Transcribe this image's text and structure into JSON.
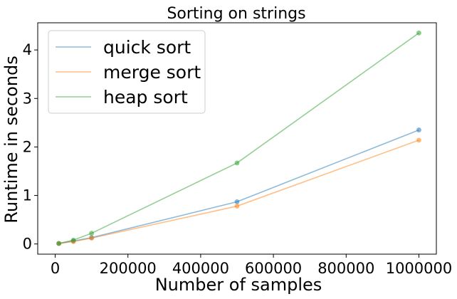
{
  "chart_data": {
    "type": "line",
    "title": "Sorting on strings",
    "xlabel": "Number of samples",
    "ylabel": "Runtime in seconds",
    "x": [
      10000,
      50000,
      100000,
      500000,
      1000000
    ],
    "series": [
      {
        "name": "quick sort",
        "color": "#1f77b4",
        "values": [
          0.01,
          0.06,
          0.13,
          0.87,
          2.35
        ]
      },
      {
        "name": "merge sort",
        "color": "#ff7f0e",
        "values": [
          0.01,
          0.05,
          0.12,
          0.78,
          2.14
        ]
      },
      {
        "name": "heap sort",
        "color": "#2ca02c",
        "values": [
          0.01,
          0.08,
          0.22,
          1.67,
          4.35
        ]
      }
    ],
    "xlim": [
      -48000,
      1048000
    ],
    "ylim": [
      -0.21,
      4.56
    ],
    "xticks": [
      0,
      200000,
      400000,
      600000,
      800000,
      1000000
    ],
    "xtick_labels": [
      "0",
      "200000",
      "400000",
      "600000",
      "800000",
      "1000000"
    ],
    "yticks": [
      0,
      1,
      2,
      3,
      4
    ],
    "ytick_labels": [
      "0",
      "1",
      "2",
      "3",
      "4"
    ],
    "legend_position": "top-left",
    "grid": false
  }
}
